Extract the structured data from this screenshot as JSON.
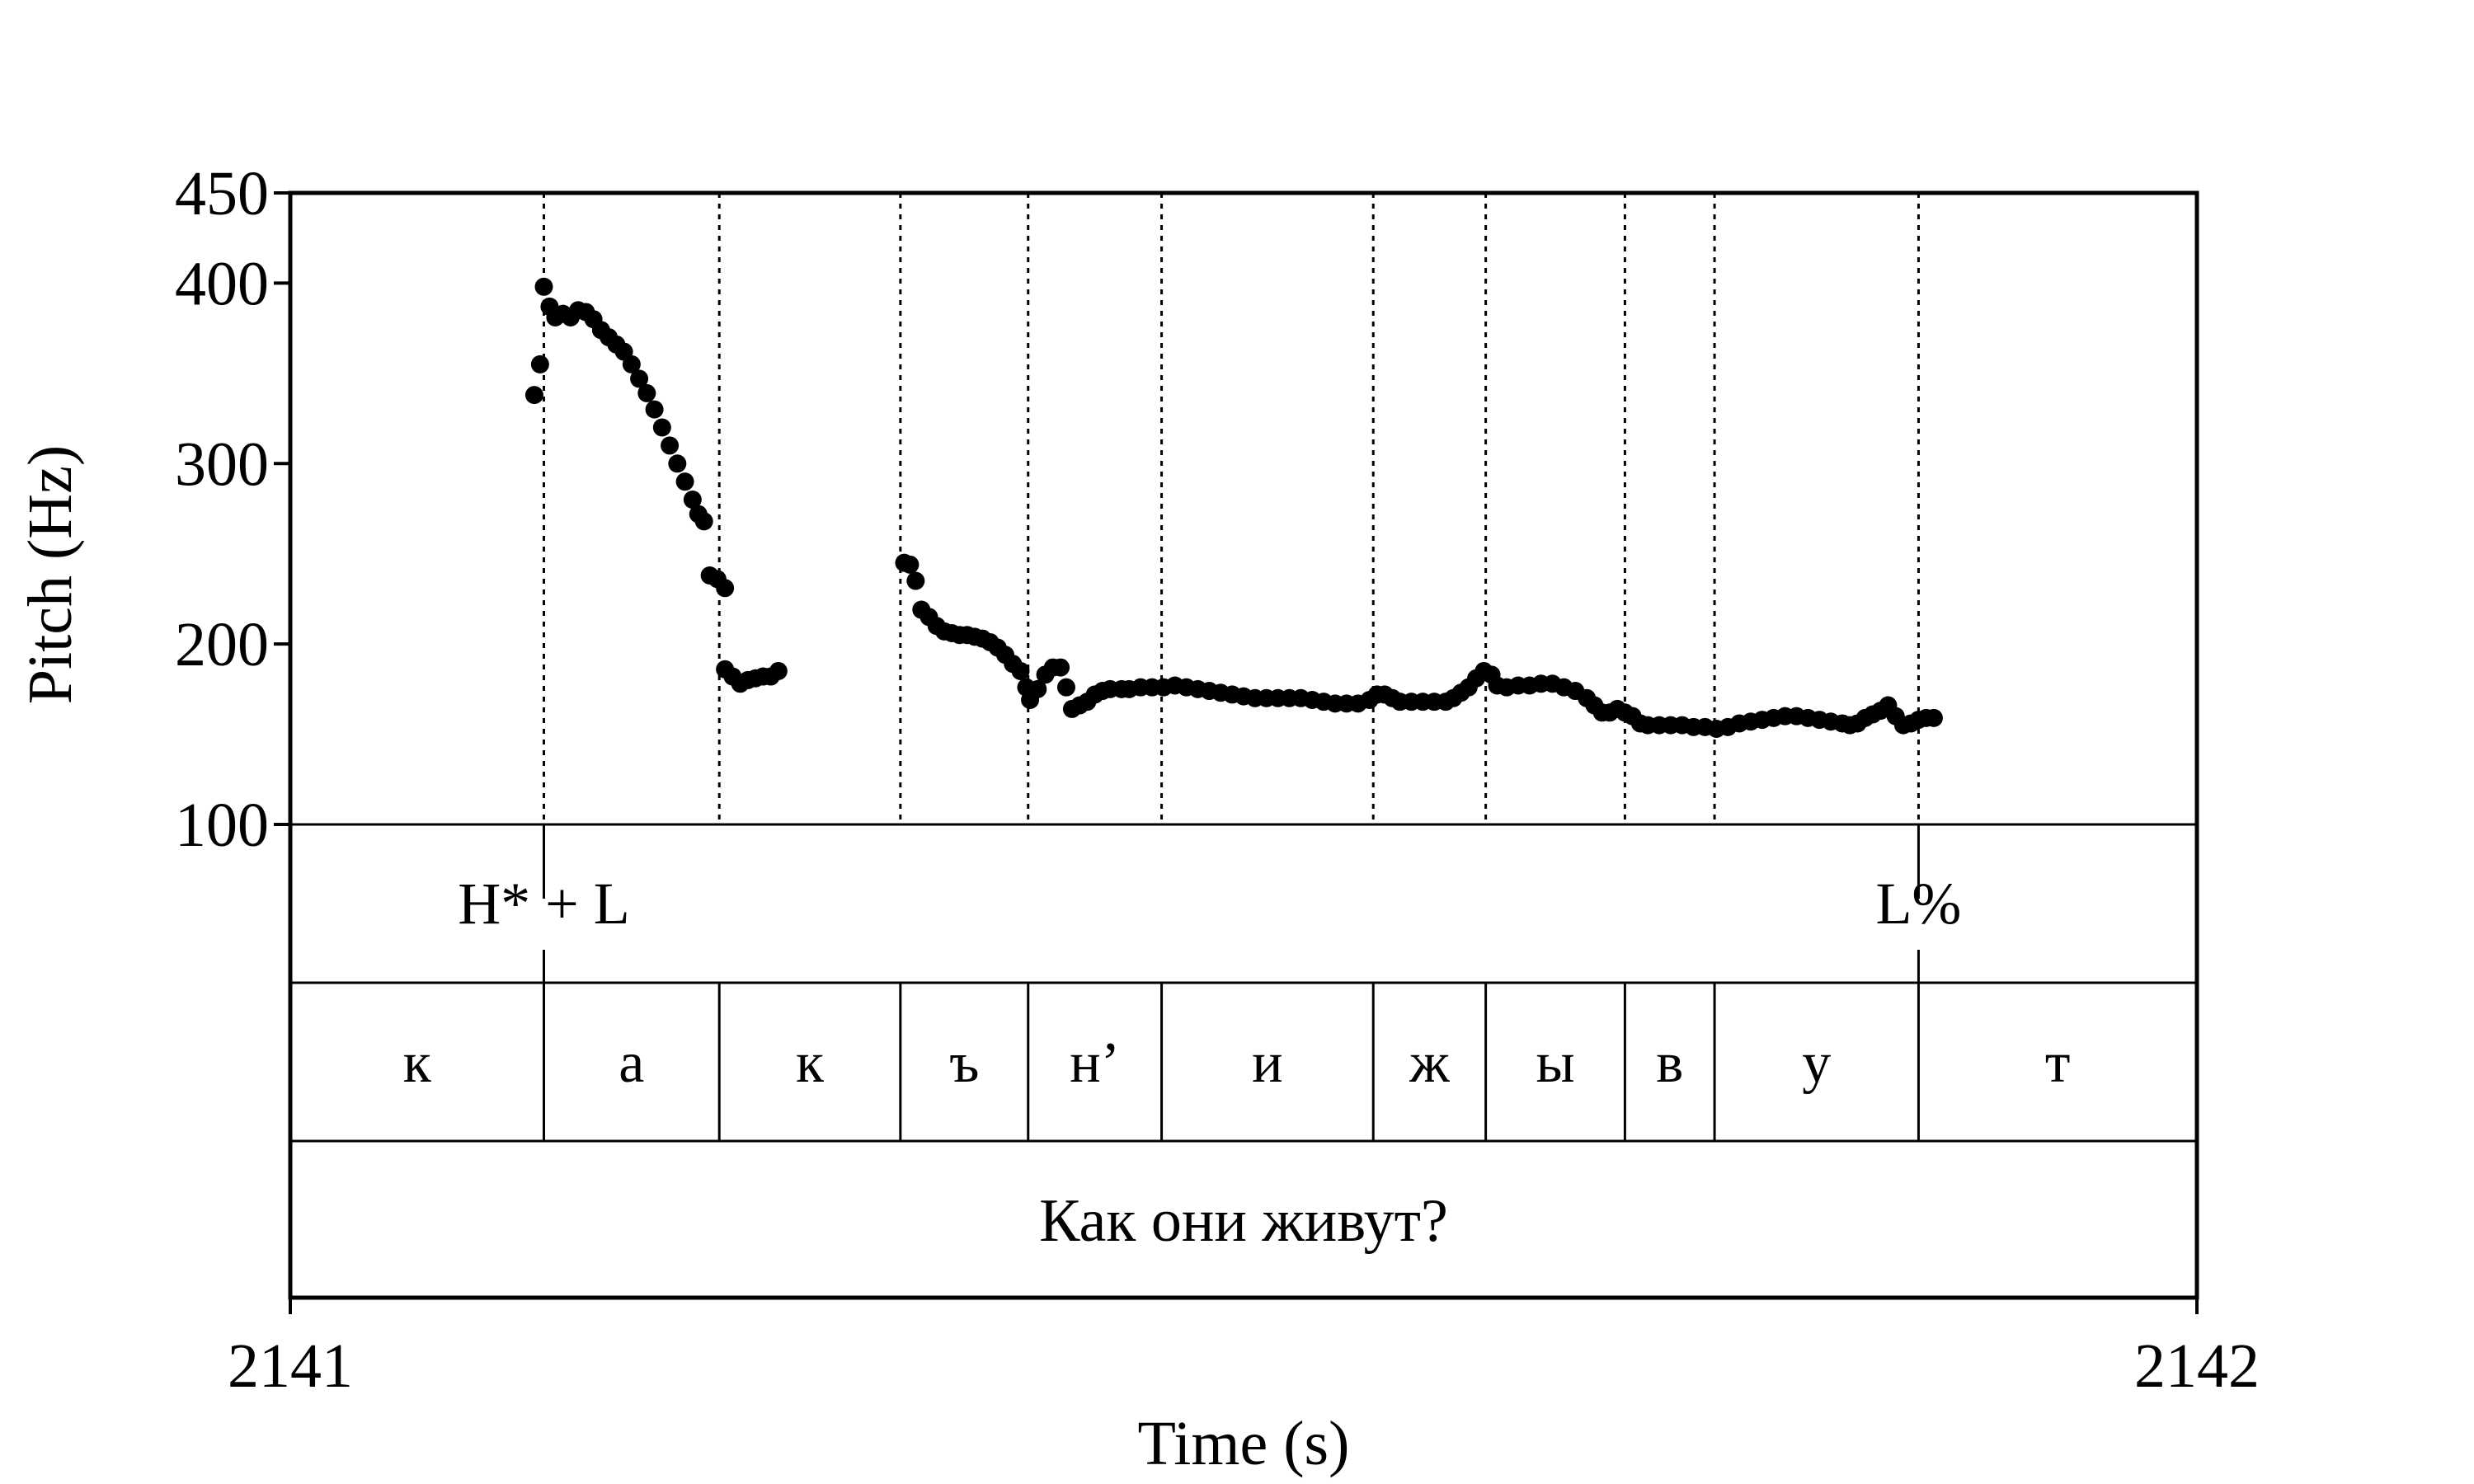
{
  "chart_data": {
    "type": "scatter",
    "xlabel": "Time (s)",
    "ylabel": "Pitch (Hz)",
    "xlim": [
      2141,
      2142
    ],
    "ylim": [
      100,
      450
    ],
    "x_ticks": [
      "2141",
      "2142"
    ],
    "y_ticks": [
      {
        "value": 100,
        "label": "100"
      },
      {
        "value": 200,
        "label": "200"
      },
      {
        "value": 300,
        "label": "300"
      },
      {
        "value": 400,
        "label": "400"
      },
      {
        "value": 450,
        "label": "450"
      }
    ],
    "boundaries": [
      2141.133,
      2141.225,
      2141.32,
      2141.387,
      2141.457,
      2141.568,
      2141.627,
      2141.7,
      2141.747,
      2141.854
    ],
    "tones": [
      {
        "label": "H* + L",
        "time": 2141.133
      },
      {
        "label": "L%",
        "time": 2141.854
      }
    ],
    "segments": [
      {
        "label": "к",
        "start": 2141.0,
        "end": 2141.133
      },
      {
        "label": "а",
        "start": 2141.133,
        "end": 2141.225
      },
      {
        "label": "к",
        "start": 2141.225,
        "end": 2141.32
      },
      {
        "label": "ъ",
        "start": 2141.32,
        "end": 2141.387
      },
      {
        "label": "н’",
        "start": 2141.387,
        "end": 2141.457
      },
      {
        "label": "и",
        "start": 2141.457,
        "end": 2141.568
      },
      {
        "label": "ж",
        "start": 2141.568,
        "end": 2141.627
      },
      {
        "label": "ы",
        "start": 2141.627,
        "end": 2141.7
      },
      {
        "label": "в",
        "start": 2141.7,
        "end": 2141.747
      },
      {
        "label": "у",
        "start": 2141.747,
        "end": 2141.854
      },
      {
        "label": "т",
        "start": 2141.854,
        "end": 2142.0
      }
    ],
    "sentence": "Как они живут?",
    "pitch_segments": [
      {
        "points": [
          [
            2141.128,
            338
          ],
          [
            2141.131,
            355
          ],
          [
            2141.133,
            398
          ],
          [
            2141.136,
            387
          ],
          [
            2141.139,
            381
          ],
          [
            2141.143,
            383
          ],
          [
            2141.147,
            381
          ],
          [
            2141.151,
            385
          ],
          [
            2141.155,
            384
          ],
          [
            2141.159,
            380
          ],
          [
            2141.163,
            374
          ],
          [
            2141.167,
            370
          ],
          [
            2141.171,
            366
          ],
          [
            2141.175,
            362
          ],
          [
            2141.179,
            355
          ],
          [
            2141.183,
            347
          ],
          [
            2141.187,
            339
          ],
          [
            2141.191,
            330
          ],
          [
            2141.195,
            320
          ],
          [
            2141.199,
            310
          ],
          [
            2141.203,
            300
          ],
          [
            2141.207,
            290
          ],
          [
            2141.211,
            280
          ],
          [
            2141.214,
            272
          ],
          [
            2141.217,
            268
          ],
          [
            2141.22,
            238
          ],
          [
            2141.224,
            236
          ],
          [
            2141.228,
            231
          ]
        ]
      },
      {
        "points": [
          [
            2141.228,
            186
          ],
          [
            2141.232,
            182
          ],
          [
            2141.236,
            178
          ],
          [
            2141.24,
            180
          ],
          [
            2141.244,
            181
          ],
          [
            2141.248,
            182
          ],
          [
            2141.252,
            182
          ],
          [
            2141.256,
            185
          ]
        ]
      },
      {
        "points": [
          [
            2141.322,
            245
          ],
          [
            2141.325,
            244
          ],
          [
            2141.328,
            235
          ],
          [
            2141.331,
            219
          ],
          [
            2141.335,
            215
          ],
          [
            2141.339,
            210
          ],
          [
            2141.343,
            207
          ],
          [
            2141.347,
            206
          ],
          [
            2141.351,
            205
          ],
          [
            2141.355,
            205
          ],
          [
            2141.359,
            204
          ],
          [
            2141.363,
            203
          ],
          [
            2141.367,
            201
          ],
          [
            2141.371,
            198
          ],
          [
            2141.375,
            194
          ],
          [
            2141.379,
            189
          ],
          [
            2141.383,
            185
          ],
          [
            2141.386,
            176
          ],
          [
            2141.388,
            169
          ],
          [
            2141.392,
            175
          ],
          [
            2141.396,
            183
          ],
          [
            2141.4,
            187
          ],
          [
            2141.404,
            187
          ],
          [
            2141.407,
            176
          ],
          [
            2141.41,
            164
          ],
          [
            2141.414,
            166
          ],
          [
            2141.418,
            168
          ],
          [
            2141.422,
            172
          ],
          [
            2141.426,
            174
          ],
          [
            2141.43,
            175
          ],
          [
            2141.436,
            175
          ],
          [
            2141.44,
            175
          ],
          [
            2141.446,
            176
          ],
          [
            2141.452,
            176
          ],
          [
            2141.458,
            176
          ],
          [
            2141.464,
            177
          ],
          [
            2141.47,
            176
          ],
          [
            2141.476,
            175
          ],
          [
            2141.482,
            174
          ],
          [
            2141.488,
            173
          ],
          [
            2141.494,
            172
          ],
          [
            2141.5,
            171
          ],
          [
            2141.506,
            170
          ],
          [
            2141.512,
            170
          ],
          [
            2141.518,
            170
          ],
          [
            2141.524,
            170
          ],
          [
            2141.53,
            170
          ],
          [
            2141.536,
            169
          ],
          [
            2141.542,
            168
          ],
          [
            2141.548,
            167
          ],
          [
            2141.554,
            167
          ],
          [
            2141.56,
            167
          ],
          [
            2141.566,
            169
          ],
          [
            2141.57,
            172
          ],
          [
            2141.574,
            172
          ],
          [
            2141.578,
            170
          ],
          [
            2141.582,
            168
          ],
          [
            2141.588,
            168
          ],
          [
            2141.594,
            168
          ],
          [
            2141.6,
            168
          ],
          [
            2141.606,
            168
          ],
          [
            2141.61,
            170
          ],
          [
            2141.614,
            173
          ],
          [
            2141.618,
            176
          ],
          [
            2141.622,
            181
          ],
          [
            2141.626,
            185
          ],
          [
            2141.63,
            183
          ],
          [
            2141.633,
            177
          ],
          [
            2141.638,
            176
          ],
          [
            2141.644,
            177
          ],
          [
            2141.65,
            177
          ],
          [
            2141.656,
            178
          ],
          [
            2141.662,
            178
          ],
          [
            2141.668,
            176
          ],
          [
            2141.674,
            174
          ],
          [
            2141.68,
            170
          ],
          [
            2141.684,
            166
          ],
          [
            2141.688,
            162
          ],
          [
            2141.692,
            162
          ],
          [
            2141.696,
            164
          ],
          [
            2141.7,
            162
          ],
          [
            2141.704,
            160
          ],
          [
            2141.708,
            156
          ],
          [
            2141.712,
            155
          ],
          [
            2141.718,
            155
          ],
          [
            2141.724,
            155
          ],
          [
            2141.73,
            155
          ],
          [
            2141.736,
            154
          ],
          [
            2141.742,
            154
          ],
          [
            2141.748,
            153
          ],
          [
            2141.754,
            154
          ],
          [
            2141.76,
            156
          ],
          [
            2141.766,
            157
          ],
          [
            2141.772,
            158
          ],
          [
            2141.778,
            159
          ],
          [
            2141.784,
            160
          ],
          [
            2141.79,
            160
          ],
          [
            2141.796,
            159
          ],
          [
            2141.802,
            158
          ],
          [
            2141.808,
            157
          ],
          [
            2141.814,
            156
          ],
          [
            2141.818,
            155
          ],
          [
            2141.822,
            156
          ],
          [
            2141.826,
            159
          ],
          [
            2141.83,
            161
          ],
          [
            2141.834,
            163
          ],
          [
            2141.838,
            166
          ],
          [
            2141.842,
            160
          ],
          [
            2141.846,
            155
          ],
          [
            2141.85,
            156
          ],
          [
            2141.854,
            158
          ],
          [
            2141.858,
            159
          ],
          [
            2141.862,
            159
          ]
        ]
      }
    ]
  }
}
